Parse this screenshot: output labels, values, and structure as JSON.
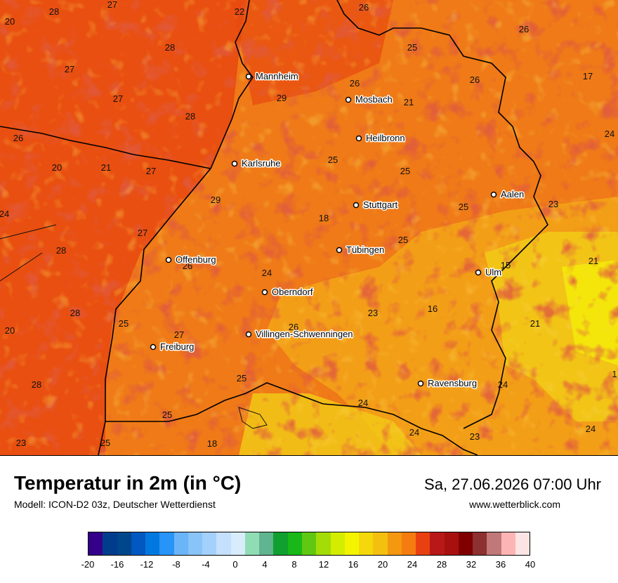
{
  "map": {
    "cities": [
      {
        "name": "Mannheim"
      },
      {
        "name": "Mosbach"
      },
      {
        "name": "Heilbronn"
      },
      {
        "name": "Karlsruhe"
      },
      {
        "name": "Stuttgart"
      },
      {
        "name": "Aalen"
      },
      {
        "name": "Tübingen"
      },
      {
        "name": "Offenburg"
      },
      {
        "name": "Ulm"
      },
      {
        "name": "Oberndorf"
      },
      {
        "name": "Villingen-Schwenningen"
      },
      {
        "name": "Freiburg"
      },
      {
        "name": "Ravensburg"
      }
    ],
    "temperature_labels": [
      "28",
      "27",
      "22",
      "26",
      "20",
      "28",
      "25",
      "26",
      "27",
      "17",
      "27",
      "29",
      "21",
      "28",
      "26",
      "24",
      "26",
      "20",
      "21",
      "27",
      "25",
      "25",
      "26",
      "29",
      "24",
      "18",
      "27",
      "25",
      "23",
      "28",
      "26",
      "15",
      "21",
      "24",
      "25",
      "28",
      "23",
      "16",
      "20",
      "27",
      "25",
      "26",
      "21",
      "28",
      "1",
      "25",
      "24",
      "24",
      "25",
      "25",
      "23",
      "24",
      "18"
    ],
    "temperature_color_levels": [
      "#f07a16",
      "#e8410e",
      "#c42514",
      "#f3a418",
      "#f2c816",
      "#f4e50b",
      "#f7f304"
    ]
  },
  "header": {
    "title": "Temperatur in 2m (in °C)",
    "model": "Modell: ICON-D2 03z, Deutscher Wetterdienst",
    "datetime": "Sa, 27.06.2026 07:00 Uhr",
    "website": "www.wetterblick.com"
  },
  "legend": {
    "ticks": [
      "-20",
      "-16",
      "-12",
      "-8",
      "-4",
      "0",
      "4",
      "8",
      "12",
      "16",
      "20",
      "24",
      "28",
      "32",
      "36",
      "40"
    ],
    "colors": [
      "#34008a",
      "#003c8c",
      "#00468c",
      "#0058c0",
      "#0078e0",
      "#2894f8",
      "#6cb4f8",
      "#88c4f8",
      "#a4d0fc",
      "#c4e0fc",
      "#d8ecfc",
      "#90dcb4",
      "#60b490",
      "#10a030",
      "#18b818",
      "#60c810",
      "#a4dc08",
      "#d4ec00",
      "#f4f400",
      "#f4d80c",
      "#f4c010",
      "#f49810",
      "#f47c10",
      "#e84010",
      "#b81818",
      "#a81010",
      "#800000",
      "#8c3030",
      "#c07878",
      "#fcb4b4",
      "#fce4e4"
    ]
  }
}
